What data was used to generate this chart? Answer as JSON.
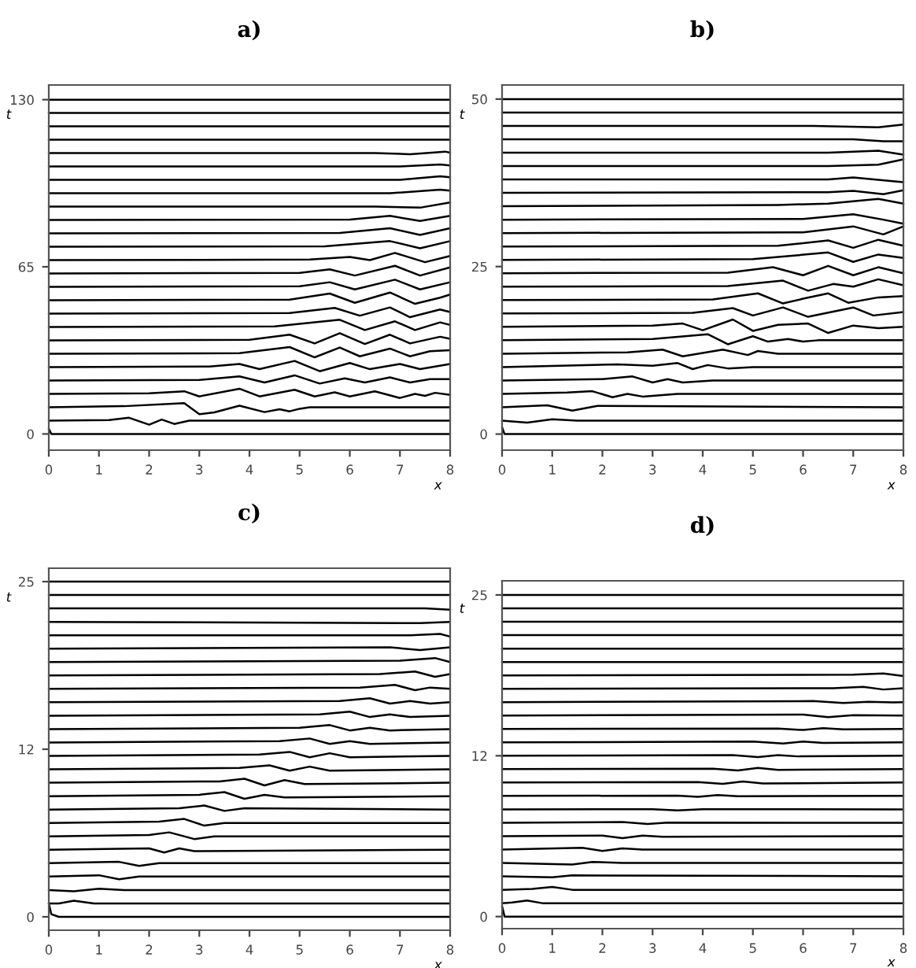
{
  "chart_data": [
    {
      "type": "line",
      "title": "a)",
      "xlabel": "x",
      "ylabel": "t",
      "xlim": [
        0,
        8
      ],
      "xticks": [
        0,
        1,
        2,
        3,
        4,
        5,
        6,
        7,
        8
      ],
      "ylim": [
        -6.3,
        135.7
      ],
      "yticks": [
        0,
        65,
        130
      ],
      "grid": false,
      "legend": false,
      "series": [
        {
          "color": "#000000",
          "x": [
            0,
            0.05,
            8
          ],
          "values": [
            2,
            0,
            0
          ]
        },
        {
          "color": "#000000",
          "x": [
            0,
            1.2,
            1.6,
            2.0,
            2.25,
            2.5,
            2.8,
            8
          ],
          "values": [
            5.2,
            5.4,
            6.3,
            3.6,
            5.6,
            3.9,
            5.2,
            5.2
          ]
        },
        {
          "color": "#000000",
          "x": [
            0,
            1.5,
            2.7,
            3.0,
            3.3,
            3.8,
            4.3,
            4.6,
            4.8,
            5.0,
            5.2,
            8
          ],
          "values": [
            10.4,
            10.8,
            12.0,
            7.7,
            8.4,
            11.0,
            8.5,
            9.6,
            8.8,
            9.8,
            10.4,
            10.4
          ]
        },
        {
          "color": "#000000",
          "x": [
            0,
            2.0,
            2.7,
            3.0,
            3.8,
            4.2,
            4.9,
            5.3,
            5.7,
            6.0,
            6.5,
            7.0,
            7.3,
            7.5,
            7.7,
            8
          ],
          "values": [
            15.6,
            15.8,
            16.6,
            14.6,
            17.6,
            14.6,
            17.2,
            14.6,
            16.2,
            14.6,
            16.6,
            14.0,
            15.6,
            14.8,
            16.0,
            15.2
          ]
        },
        {
          "color": "#000000",
          "x": [
            0,
            3.0,
            3.8,
            4.3,
            4.9,
            5.4,
            5.9,
            6.3,
            6.8,
            7.2,
            7.6,
            8
          ],
          "values": [
            20.8,
            21.0,
            22.4,
            20.0,
            22.8,
            19.6,
            21.6,
            20.0,
            22.0,
            20.0,
            21.3,
            21.3
          ]
        },
        {
          "color": "#000000",
          "x": [
            0,
            3.2,
            3.8,
            4.2,
            4.9,
            5.4,
            6.0,
            6.4,
            7.0,
            7.4,
            8
          ],
          "values": [
            26.0,
            26.2,
            27.2,
            25.2,
            28.4,
            24.4,
            27.6,
            25.2,
            27.2,
            25.2,
            27.2
          ]
        },
        {
          "color": "#000000",
          "x": [
            0,
            3.8,
            4.8,
            5.3,
            5.8,
            6.2,
            6.8,
            7.2,
            7.6,
            8
          ],
          "values": [
            31.2,
            31.4,
            33.8,
            29.8,
            33.6,
            30.2,
            33.2,
            30.2,
            32.2,
            32.6
          ]
        },
        {
          "color": "#000000",
          "x": [
            0,
            4.0,
            4.8,
            5.3,
            5.8,
            6.3,
            6.8,
            7.2,
            7.8,
            8
          ],
          "values": [
            36.4,
            36.6,
            38.6,
            35.2,
            39.2,
            35.0,
            38.6,
            35.2,
            37.8,
            37.0
          ]
        },
        {
          "color": "#000000",
          "x": [
            0,
            4.5,
            5.8,
            6.3,
            6.9,
            7.3,
            7.8,
            8
          ],
          "values": [
            41.6,
            41.8,
            44.4,
            40.4,
            43.8,
            40.4,
            43.4,
            42.4
          ]
        },
        {
          "color": "#000000",
          "x": [
            0,
            4.8,
            5.7,
            6.2,
            6.8,
            7.2,
            7.8,
            8
          ],
          "values": [
            46.8,
            47.0,
            49.0,
            46.0,
            49.2,
            45.4,
            48.4,
            47.4
          ]
        },
        {
          "color": "#000000",
          "x": [
            0,
            4.8,
            5.6,
            6.1,
            6.8,
            7.3,
            7.8,
            8
          ],
          "values": [
            52.0,
            52.2,
            54.6,
            51.0,
            55.0,
            50.6,
            53.0,
            54.2
          ]
        },
        {
          "color": "#000000",
          "x": [
            0,
            5.0,
            5.6,
            6.1,
            6.9,
            7.4,
            8
          ],
          "values": [
            57.2,
            57.4,
            59.0,
            56.2,
            60.0,
            56.2,
            59.0
          ]
        },
        {
          "color": "#000000",
          "x": [
            0,
            5.0,
            5.6,
            6.1,
            6.9,
            7.4,
            8
          ],
          "values": [
            62.4,
            62.6,
            64.0,
            61.6,
            65.4,
            61.6,
            64.8
          ]
        },
        {
          "color": "#000000",
          "x": [
            0,
            5.2,
            6.0,
            6.4,
            6.9,
            7.5,
            8
          ],
          "values": [
            67.6,
            67.8,
            68.8,
            67.6,
            70.4,
            66.8,
            69.2
          ]
        },
        {
          "color": "#000000",
          "x": [
            0,
            5.5,
            6.8,
            7.4,
            8
          ],
          "values": [
            72.8,
            73.0,
            75.0,
            72.2,
            75.0
          ]
        },
        {
          "color": "#000000",
          "x": [
            0,
            5.8,
            6.8,
            7.4,
            8
          ],
          "values": [
            78.0,
            78.2,
            80.0,
            77.4,
            80.0
          ]
        },
        {
          "color": "#000000",
          "x": [
            0,
            6.0,
            6.8,
            7.4,
            8
          ],
          "values": [
            83.2,
            83.4,
            84.8,
            82.8,
            84.8
          ]
        },
        {
          "color": "#000000",
          "x": [
            0,
            6.5,
            7.4,
            8
          ],
          "values": [
            88.4,
            88.4,
            88.0,
            90.0
          ]
        },
        {
          "color": "#000000",
          "x": [
            0,
            6.8,
            7.8,
            8
          ],
          "values": [
            93.6,
            93.6,
            95.0,
            94.6
          ]
        },
        {
          "color": "#000000",
          "x": [
            0,
            7.0,
            7.8,
            8
          ],
          "values": [
            98.8,
            98.8,
            100.2,
            99.8
          ]
        },
        {
          "color": "#000000",
          "x": [
            0,
            7.0,
            7.8,
            8
          ],
          "values": [
            104.0,
            104.0,
            104.8,
            104.4
          ]
        },
        {
          "color": "#000000",
          "x": [
            0,
            6.5,
            7.2,
            7.9,
            8
          ],
          "values": [
            109.2,
            109.2,
            108.8,
            109.8,
            109.4
          ]
        },
        {
          "color": "#000000",
          "x": [
            0,
            8
          ],
          "values": [
            114.4,
            114.4
          ]
        },
        {
          "color": "#000000",
          "x": [
            0,
            8
          ],
          "values": [
            119.6,
            119.6
          ]
        },
        {
          "color": "#000000",
          "x": [
            0,
            8
          ],
          "values": [
            124.8,
            124.8
          ]
        },
        {
          "color": "#000000",
          "x": [
            0,
            8
          ],
          "values": [
            130.0,
            130.0
          ]
        }
      ]
    },
    {
      "type": "line",
      "title": "b)",
      "xlabel": "x",
      "ylabel": "t",
      "xlim": [
        0,
        8
      ],
      "xticks": [
        0,
        1,
        2,
        3,
        4,
        5,
        6,
        7,
        8
      ],
      "ylim": [
        -2.4,
        52.1
      ],
      "yticks": [
        0,
        25,
        50
      ],
      "grid": false,
      "legend": false,
      "series": [
        {
          "color": "#000000",
          "x": [
            0,
            0.05,
            8
          ],
          "values": [
            1,
            0,
            0
          ]
        },
        {
          "color": "#000000",
          "x": [
            0,
            0.5,
            1.0,
            1.5,
            8
          ],
          "values": [
            2,
            1.7,
            2.2,
            2.0,
            2.0
          ]
        },
        {
          "color": "#000000",
          "x": [
            0,
            0.9,
            1.4,
            1.9,
            8
          ],
          "values": [
            4,
            4.3,
            3.5,
            4.2,
            4.0
          ]
        },
        {
          "color": "#000000",
          "x": [
            0,
            1.3,
            1.8,
            2.2,
            2.5,
            2.8,
            3.5,
            8
          ],
          "values": [
            6,
            6.2,
            6.4,
            5.5,
            6.0,
            5.6,
            6.0,
            6.0
          ]
        },
        {
          "color": "#000000",
          "x": [
            0,
            2.0,
            2.6,
            3.0,
            3.3,
            3.6,
            4.2,
            8
          ],
          "values": [
            8,
            8.2,
            8.6,
            7.7,
            8.2,
            7.7,
            8.0,
            8.0
          ]
        },
        {
          "color": "#000000",
          "x": [
            0,
            2.3,
            3.0,
            3.5,
            3.8,
            4.1,
            4.5,
            5.0,
            8
          ],
          "values": [
            10,
            10.4,
            10.2,
            10.6,
            9.7,
            10.3,
            9.8,
            10.0,
            10.0
          ]
        },
        {
          "color": "#000000",
          "x": [
            0,
            2.5,
            3.2,
            3.6,
            4.4,
            4.9,
            5.1,
            5.5,
            8
          ],
          "values": [
            12,
            12.2,
            12.6,
            11.6,
            12.6,
            11.8,
            12.4,
            12.0,
            12.0
          ]
        },
        {
          "color": "#000000",
          "x": [
            0,
            3.0,
            4.1,
            4.5,
            5.0,
            5.3,
            5.7,
            6.0,
            6.3,
            8
          ],
          "values": [
            14,
            14.2,
            14.9,
            13.4,
            14.6,
            13.8,
            14.2,
            13.8,
            14.0,
            14.0
          ]
        },
        {
          "color": "#000000",
          "x": [
            0,
            3.0,
            3.6,
            4.0,
            4.6,
            5.0,
            5.5,
            6.1,
            6.5,
            7.0,
            7.5,
            8
          ],
          "values": [
            16,
            16.2,
            16.5,
            15.5,
            17.1,
            15.4,
            16.3,
            16.5,
            15.1,
            16.2,
            15.8,
            16.0
          ]
        },
        {
          "color": "#000000",
          "x": [
            0,
            3.8,
            4.6,
            5.0,
            5.6,
            6.1,
            7.0,
            7.4,
            8
          ],
          "values": [
            18,
            18.1,
            18.8,
            17.7,
            18.9,
            17.5,
            18.9,
            17.7,
            18.2
          ]
        },
        {
          "color": "#000000",
          "x": [
            0,
            4.2,
            5.1,
            5.6,
            6.0,
            6.5,
            6.9,
            7.5,
            8
          ],
          "values": [
            20,
            20.1,
            21.0,
            19.5,
            20.2,
            21.0,
            19.6,
            20.4,
            20.6
          ]
        },
        {
          "color": "#000000",
          "x": [
            0,
            4.5,
            5.6,
            6.1,
            6.6,
            7.0,
            7.5,
            8
          ],
          "values": [
            22,
            22.1,
            22.9,
            21.4,
            22.4,
            22.0,
            23.1,
            22.2
          ]
        },
        {
          "color": "#000000",
          "x": [
            0,
            4.5,
            5.4,
            6.0,
            6.5,
            7.0,
            7.5,
            8
          ],
          "values": [
            24,
            24.1,
            24.9,
            23.7,
            25.1,
            23.7,
            24.9,
            24.0
          ]
        },
        {
          "color": "#000000",
          "x": [
            0,
            5.0,
            6.5,
            7.0,
            7.5,
            8
          ],
          "values": [
            26,
            26.1,
            27.1,
            25.7,
            26.8,
            26.3
          ]
        },
        {
          "color": "#000000",
          "x": [
            0,
            5.5,
            6.5,
            7.0,
            7.5,
            8
          ],
          "values": [
            28,
            28.1,
            28.9,
            27.8,
            29.0,
            28.1
          ]
        },
        {
          "color": "#000000",
          "x": [
            0,
            6.0,
            7.0,
            7.6,
            8
          ],
          "values": [
            30,
            30.1,
            31.0,
            29.8,
            31.0
          ]
        },
        {
          "color": "#000000",
          "x": [
            0,
            6.0,
            7.0,
            7.6,
            8
          ],
          "values": [
            32,
            32.1,
            32.8,
            32.0,
            31.4
          ]
        },
        {
          "color": "#000000",
          "x": [
            0,
            5.5,
            6.5,
            7.5,
            8
          ],
          "values": [
            34,
            34.2,
            34.4,
            35.1,
            34.4
          ]
        },
        {
          "color": "#000000",
          "x": [
            0,
            6.5,
            7.0,
            7.6,
            8
          ],
          "values": [
            36,
            36.1,
            36.3,
            35.8,
            36.4
          ]
        },
        {
          "color": "#000000",
          "x": [
            0,
            6.5,
            7.0,
            8
          ],
          "values": [
            38,
            38,
            38.3,
            37.6
          ]
        },
        {
          "color": "#000000",
          "x": [
            0,
            6.5,
            7.5,
            8
          ],
          "values": [
            40,
            40,
            40.2,
            41.0
          ]
        },
        {
          "color": "#000000",
          "x": [
            0,
            6.5,
            7.5,
            8
          ],
          "values": [
            42,
            42,
            42.3,
            41.7
          ]
        },
        {
          "color": "#000000",
          "x": [
            0,
            7.0,
            7.6,
            8
          ],
          "values": [
            44,
            44,
            43.7,
            43.7
          ]
        },
        {
          "color": "#000000",
          "x": [
            0,
            6.2,
            7.5,
            8
          ],
          "values": [
            46,
            46,
            45.8,
            46.2
          ]
        },
        {
          "color": "#000000",
          "x": [
            0,
            8
          ],
          "values": [
            48,
            48
          ]
        },
        {
          "color": "#000000",
          "x": [
            0,
            8
          ],
          "values": [
            50,
            50
          ]
        }
      ]
    },
    {
      "type": "line",
      "title": "c)",
      "xlabel": "x",
      "ylabel": "t",
      "xlim": [
        0,
        8
      ],
      "xticks": [
        0,
        1,
        2,
        3,
        4,
        5,
        6,
        7,
        8
      ],
      "ylim": [
        -1.0,
        26.0
      ],
      "yticks": [
        0,
        {
          "value": 12.5,
          "label": "12"
        },
        25
      ],
      "grid": false,
      "legend": false,
      "series": [
        {
          "color": "#000000",
          "x": [
            0,
            0.05,
            0.2,
            8
          ],
          "values": [
            1,
            0.2,
            0,
            0
          ]
        },
        {
          "color": "#000000",
          "x": [
            0,
            0.2,
            0.5,
            0.9,
            8
          ],
          "values": [
            1,
            1.0,
            1.2,
            1.0,
            1.0
          ]
        },
        {
          "color": "#000000",
          "x": [
            0,
            0.5,
            1.0,
            1.5,
            8
          ],
          "values": [
            2,
            1.9,
            2.1,
            2.0,
            2.0
          ]
        },
        {
          "color": "#000000",
          "x": [
            0,
            1.0,
            1.4,
            1.8,
            8
          ],
          "values": [
            3,
            3.1,
            2.8,
            3.0,
            3.0
          ]
        },
        {
          "color": "#000000",
          "x": [
            0,
            1.4,
            1.8,
            2.2,
            8
          ],
          "values": [
            4,
            4.1,
            3.8,
            4.0,
            4.0
          ]
        },
        {
          "color": "#000000",
          "x": [
            0,
            2.0,
            2.3,
            2.6,
            2.9,
            8
          ],
          "values": [
            5,
            5.1,
            4.8,
            5.1,
            4.9,
            5.0
          ]
        },
        {
          "color": "#000000",
          "x": [
            0,
            2.0,
            2.4,
            2.9,
            3.3,
            8
          ],
          "values": [
            6,
            6.1,
            6.3,
            5.8,
            6.0,
            6.0
          ]
        },
        {
          "color": "#000000",
          "x": [
            0,
            2.2,
            2.7,
            3.1,
            3.5,
            8
          ],
          "values": [
            7,
            7.1,
            7.3,
            6.8,
            7.0,
            7.0
          ]
        },
        {
          "color": "#000000",
          "x": [
            0,
            2.6,
            3.1,
            3.5,
            3.9,
            8
          ],
          "values": [
            8,
            8.1,
            8.3,
            7.9,
            8.1,
            8.0
          ]
        },
        {
          "color": "#000000",
          "x": [
            0,
            3.0,
            3.5,
            3.9,
            4.3,
            4.7,
            8
          ],
          "values": [
            9,
            9.1,
            9.3,
            8.8,
            9.1,
            8.9,
            9.0
          ]
        },
        {
          "color": "#000000",
          "x": [
            0,
            3.4,
            3.9,
            4.3,
            4.7,
            5.1,
            8
          ],
          "values": [
            10,
            10.1,
            10.3,
            9.8,
            10.2,
            9.9,
            10.0
          ]
        },
        {
          "color": "#000000",
          "x": [
            0,
            3.8,
            4.4,
            4.8,
            5.2,
            5.6,
            8
          ],
          "values": [
            11,
            11.1,
            11.3,
            10.9,
            11.2,
            10.9,
            11.0
          ]
        },
        {
          "color": "#000000",
          "x": [
            0,
            4.2,
            4.8,
            5.2,
            5.6,
            6.0,
            8
          ],
          "values": [
            12,
            12.1,
            12.3,
            11.9,
            12.2,
            11.9,
            12.0
          ]
        },
        {
          "color": "#000000",
          "x": [
            0,
            4.6,
            5.2,
            5.6,
            6.0,
            6.4,
            8
          ],
          "values": [
            13,
            13.1,
            13.3,
            12.9,
            13.1,
            12.9,
            13.0
          ]
        },
        {
          "color": "#000000",
          "x": [
            0,
            5.0,
            5.6,
            6.0,
            6.4,
            6.8,
            8
          ],
          "values": [
            14,
            14.1,
            14.3,
            13.9,
            14.1,
            13.9,
            14.0
          ]
        },
        {
          "color": "#000000",
          "x": [
            0,
            5.4,
            6.0,
            6.4,
            6.8,
            7.2,
            8
          ],
          "values": [
            15,
            15.1,
            15.3,
            14.9,
            15.1,
            14.9,
            15.0
          ]
        },
        {
          "color": "#000000",
          "x": [
            0,
            5.8,
            6.4,
            6.8,
            7.2,
            7.6,
            8
          ],
          "values": [
            16,
            16.1,
            16.3,
            15.9,
            16.1,
            15.9,
            16.0
          ]
        },
        {
          "color": "#000000",
          "x": [
            0,
            6.2,
            6.9,
            7.3,
            7.6,
            8
          ],
          "values": [
            17,
            17.1,
            17.3,
            16.9,
            17.1,
            17.0
          ]
        },
        {
          "color": "#000000",
          "x": [
            0,
            6.6,
            7.3,
            7.7,
            8
          ],
          "values": [
            18,
            18.1,
            18.3,
            17.9,
            18.1
          ]
        },
        {
          "color": "#000000",
          "x": [
            0,
            7.0,
            7.7,
            8
          ],
          "values": [
            19,
            19.1,
            19.3,
            19.0
          ]
        },
        {
          "color": "#000000",
          "x": [
            0,
            6.8,
            7.4,
            8
          ],
          "values": [
            20,
            20.1,
            19.9,
            20.1
          ]
        },
        {
          "color": "#000000",
          "x": [
            0,
            7.2,
            7.8,
            8
          ],
          "values": [
            21,
            21.0,
            21.1,
            20.9
          ]
        },
        {
          "color": "#000000",
          "x": [
            0,
            7.4,
            8
          ],
          "values": [
            22,
            21.9,
            22.0
          ]
        },
        {
          "color": "#000000",
          "x": [
            0,
            7.5,
            8
          ],
          "values": [
            23,
            23,
            22.9
          ]
        },
        {
          "color": "#000000",
          "x": [
            0,
            8
          ],
          "values": [
            24,
            24
          ]
        },
        {
          "color": "#000000",
          "x": [
            0,
            8
          ],
          "values": [
            25,
            25
          ]
        }
      ]
    },
    {
      "type": "line",
      "title": "d)",
      "xlabel": "x",
      "ylabel": "t",
      "xlim": [
        0,
        8
      ],
      "xticks": [
        0,
        1,
        2,
        3,
        4,
        5,
        6,
        7,
        8
      ],
      "ylim": [
        -0.94,
        26.1
      ],
      "yticks": [
        0,
        {
          "value": 12.5,
          "label": "12"
        },
        25
      ],
      "grid": false,
      "legend": false,
      "series": [
        {
          "color": "#000000",
          "x": [
            0,
            0.05,
            8
          ],
          "values": [
            0.8,
            0,
            0
          ]
        },
        {
          "color": "#000000",
          "x": [
            0,
            0.2,
            0.5,
            0.8,
            8
          ],
          "values": [
            1.04,
            1.1,
            1.25,
            1.04,
            1.04
          ]
        },
        {
          "color": "#000000",
          "x": [
            0,
            0.6,
            1.0,
            1.4,
            8
          ],
          "values": [
            2.08,
            2.15,
            2.3,
            2.08,
            2.08
          ]
        },
        {
          "color": "#000000",
          "x": [
            0,
            1.0,
            1.4,
            8
          ],
          "values": [
            3.13,
            3.05,
            3.2,
            3.13
          ]
        },
        {
          "color": "#000000",
          "x": [
            0,
            1.4,
            1.8,
            2.4,
            8
          ],
          "values": [
            4.17,
            4.05,
            4.25,
            4.17,
            4.17
          ]
        },
        {
          "color": "#000000",
          "x": [
            0,
            1.6,
            2.0,
            2.4,
            2.8,
            8
          ],
          "values": [
            5.21,
            5.35,
            5.1,
            5.3,
            5.21,
            5.21
          ]
        },
        {
          "color": "#000000",
          "x": [
            0,
            2.0,
            2.4,
            2.8,
            3.2,
            8
          ],
          "values": [
            6.25,
            6.3,
            6.1,
            6.3,
            6.2,
            6.25
          ]
        },
        {
          "color": "#000000",
          "x": [
            0,
            2.4,
            2.9,
            3.3,
            8
          ],
          "values": [
            7.29,
            7.35,
            7.2,
            7.3,
            7.29
          ]
        },
        {
          "color": "#000000",
          "x": [
            0,
            3.0,
            3.5,
            4.0,
            8
          ],
          "values": [
            8.33,
            8.35,
            8.25,
            8.35,
            8.33
          ]
        },
        {
          "color": "#000000",
          "x": [
            0,
            3.5,
            3.9,
            4.3,
            4.7,
            8
          ],
          "values": [
            9.38,
            9.4,
            9.3,
            9.45,
            9.35,
            9.38
          ]
        },
        {
          "color": "#000000",
          "x": [
            0,
            3.9,
            4.4,
            4.8,
            5.2,
            8
          ],
          "values": [
            10.42,
            10.45,
            10.32,
            10.5,
            10.35,
            10.42
          ]
        },
        {
          "color": "#000000",
          "x": [
            0,
            4.2,
            4.7,
            5.1,
            5.5,
            8
          ],
          "values": [
            11.46,
            11.5,
            11.36,
            11.55,
            11.4,
            11.46
          ]
        },
        {
          "color": "#000000",
          "x": [
            0,
            4.6,
            5.1,
            5.5,
            5.9,
            8
          ],
          "values": [
            12.5,
            12.55,
            12.4,
            12.55,
            12.45,
            12.5
          ]
        },
        {
          "color": "#000000",
          "x": [
            0,
            5.0,
            5.6,
            6.0,
            6.4,
            8
          ],
          "values": [
            13.54,
            13.6,
            13.45,
            13.6,
            13.5,
            13.54
          ]
        },
        {
          "color": "#000000",
          "x": [
            0,
            5.5,
            6.0,
            6.4,
            6.8,
            8
          ],
          "values": [
            14.58,
            14.62,
            14.5,
            14.65,
            14.55,
            14.58
          ]
        },
        {
          "color": "#000000",
          "x": [
            0,
            6.0,
            6.5,
            7.0,
            8
          ],
          "values": [
            15.63,
            15.7,
            15.5,
            15.65,
            15.63
          ]
        },
        {
          "color": "#000000",
          "x": [
            0,
            6.2,
            6.8,
            7.3,
            7.8,
            8
          ],
          "values": [
            16.67,
            16.75,
            16.6,
            16.7,
            16.65,
            16.67
          ]
        },
        {
          "color": "#000000",
          "x": [
            0,
            6.6,
            7.2,
            7.6,
            8
          ],
          "values": [
            17.71,
            17.75,
            17.85,
            17.65,
            17.75
          ]
        },
        {
          "color": "#000000",
          "x": [
            0,
            7.0,
            7.6,
            8
          ],
          "values": [
            18.75,
            18.8,
            18.9,
            18.7
          ]
        },
        {
          "color": "#000000",
          "x": [
            0,
            8
          ],
          "values": [
            19.79,
            19.79
          ]
        },
        {
          "color": "#000000",
          "x": [
            0,
            8
          ],
          "values": [
            20.83,
            20.83
          ]
        },
        {
          "color": "#000000",
          "x": [
            0,
            8
          ],
          "values": [
            21.88,
            21.88
          ]
        },
        {
          "color": "#000000",
          "x": [
            0,
            8
          ],
          "values": [
            22.92,
            22.92
          ]
        },
        {
          "color": "#000000",
          "x": [
            0,
            8
          ],
          "values": [
            23.96,
            23.96
          ]
        },
        {
          "color": "#000000",
          "x": [
            0,
            8
          ],
          "values": [
            25.0,
            25.0
          ]
        }
      ]
    }
  ]
}
